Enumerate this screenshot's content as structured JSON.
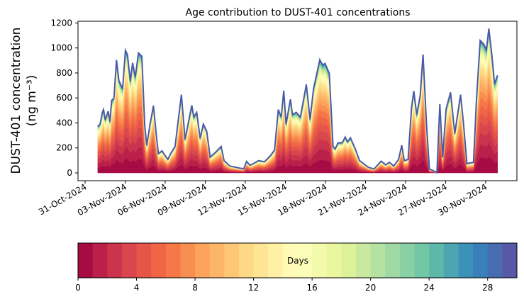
{
  "chart_data": {
    "type": "area",
    "stacked": true,
    "title": "Age contribution to DUST-401 concentrations",
    "ylabel_line1": "DUST-401 concentration",
    "ylabel_line2": "(ng m⁻³)",
    "xlabel": "",
    "ylim": [
      0,
      1200
    ],
    "yticks": [
      0,
      200,
      400,
      600,
      800,
      1000,
      1200
    ],
    "xlim_days_since_2024-10-31": [
      -0.5,
      32.4
    ],
    "xticks": [
      {
        "day": 0,
        "label": "31-Oct-2024"
      },
      {
        "day": 3,
        "label": "03-Nov-2024"
      },
      {
        "day": 6,
        "label": "06-Nov-2024"
      },
      {
        "day": 9,
        "label": "09-Nov-2024"
      },
      {
        "day": 12,
        "label": "12-Nov-2024"
      },
      {
        "day": 15,
        "label": "15-Nov-2024"
      },
      {
        "day": 18,
        "label": "18-Nov-2024"
      },
      {
        "day": 21,
        "label": "21-Nov-2024"
      },
      {
        "day": 24,
        "label": "24-Nov-2024"
      },
      {
        "day": 27,
        "label": "27-Nov-2024"
      },
      {
        "day": 30,
        "label": "30-Nov-2024"
      }
    ],
    "total_series": {
      "x_days_since_2024-10-31": [
        0.95,
        1.12,
        1.3,
        1.38,
        1.51,
        1.73,
        1.86,
        1.99,
        2.16,
        2.35,
        2.53,
        2.81,
        3.02,
        3.17,
        3.39,
        3.56,
        3.76,
        4.0,
        4.25,
        4.47,
        4.62,
        4.84,
        5.12,
        5.36,
        5.49,
        5.77,
        5.92,
        6.2,
        6.41,
        6.74,
        7.21,
        7.49,
        7.99,
        8.14,
        8.36,
        8.62,
        8.86,
        9.11,
        9.37,
        9.76,
        10.19,
        10.41,
        10.84,
        11.49,
        11.88,
        12.1,
        12.35,
        13.0,
        13.43,
        13.87,
        14.19,
        14.47,
        14.69,
        14.88,
        15.05,
        15.38,
        15.53,
        15.81,
        16.13,
        16.57,
        16.85,
        17.11,
        17.58,
        17.8,
        17.97,
        18.29,
        18.57,
        18.73,
        18.94,
        19.27,
        19.48,
        19.65,
        19.87,
        20.24,
        20.56,
        21.21,
        21.64,
        22.18,
        22.51,
        22.79,
        23.11,
        23.48,
        23.72,
        23.91,
        24.19,
        24.45,
        24.62,
        24.84,
        25.1,
        25.31,
        25.57,
        25.79,
        26.35,
        26.57,
        26.78,
        27.04,
        27.37,
        27.69,
        28.12,
        28.34,
        28.6,
        29.09,
        29.31,
        29.59,
        29.85,
        30.06,
        30.24,
        30.45,
        30.67,
        30.89
      ],
      "y": [
        372,
        390,
        485,
        507,
        424,
        494,
        410,
        580,
        598,
        904,
        740,
        674,
        981,
        947,
        734,
        881,
        768,
        960,
        934,
        372,
        221,
        372,
        538,
        277,
        155,
        177,
        149,
        108,
        155,
        211,
        626,
        268,
        541,
        447,
        485,
        277,
        390,
        334,
        126,
        164,
        211,
        98,
        55,
        40,
        32,
        92,
        60,
        98,
        89,
        136,
        183,
        507,
        447,
        658,
        390,
        589,
        466,
        485,
        447,
        708,
        428,
        674,
        906,
        862,
        877,
        796,
        211,
        192,
        240,
        243,
        287,
        249,
        281,
        192,
        98,
        45,
        32,
        94,
        64,
        85,
        55,
        108,
        221,
        98,
        108,
        523,
        655,
        466,
        617,
        947,
        390,
        32,
        4,
        551,
        126,
        513,
        645,
        315,
        626,
        400,
        74,
        85,
        579,
        1060,
        1032,
        985,
        1155,
        957,
        711,
        781
      ]
    },
    "age_bins_days": 30,
    "age_share": [
      0.12,
      0.1,
      0.09,
      0.08,
      0.07,
      0.065,
      0.06,
      0.055,
      0.05,
      0.045,
      0.04,
      0.035,
      0.03,
      0.027,
      0.024,
      0.021,
      0.018,
      0.016,
      0.014,
      0.012,
      0.01,
      0.009,
      0.008,
      0.007,
      0.006,
      0.005,
      0.004,
      0.003,
      0.003,
      0.003
    ],
    "colormap_anchors": [
      "#9e0142",
      "#d53e4f",
      "#f46d43",
      "#fdae61",
      "#fee08b",
      "#ffffbf",
      "#e6f598",
      "#abdda4",
      "#66c2a5",
      "#3288bd",
      "#5e4fa2"
    ],
    "envelope_color": "#4a5aa8",
    "colorbar": {
      "label": "Days",
      "range": [
        0,
        30
      ],
      "ticks": [
        "0",
        "4",
        "8",
        "12",
        "16",
        "20",
        "24",
        "28"
      ],
      "tick_values": [
        0,
        4,
        8,
        12,
        16,
        20,
        24,
        28
      ]
    }
  }
}
